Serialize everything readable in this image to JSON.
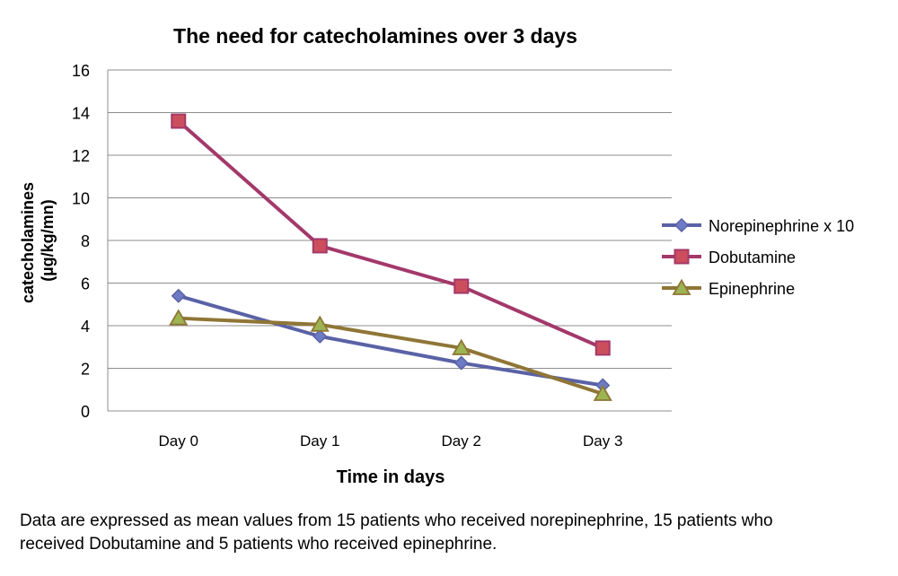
{
  "chart_data": {
    "type": "line",
    "title": "The need for catecholamines over 3 days",
    "xlabel": "Time in days",
    "ylabel_lines": [
      "catecholamines",
      "(µg/kg/mn)"
    ],
    "categories": [
      "Day 0",
      "Day 1",
      "Day 2",
      "Day 3"
    ],
    "ylim": [
      0,
      16
    ],
    "yticks": [
      0,
      2,
      4,
      6,
      8,
      10,
      12,
      14,
      16
    ],
    "grid": true,
    "legend_position": "right",
    "series": [
      {
        "name": "Norepinephrine x 10",
        "values": [
          5.4,
          3.5,
          2.25,
          1.2
        ],
        "color": "#5A62A6",
        "marker": "diamond",
        "marker_fill": "#6C7BC4"
      },
      {
        "name": "Dobutamine",
        "values": [
          13.6,
          7.75,
          5.85,
          2.95
        ],
        "color": "#A3386A",
        "marker": "square",
        "marker_fill": "#CC4E5C"
      },
      {
        "name": "Epinephrine",
        "values": [
          4.35,
          4.05,
          2.95,
          0.8
        ],
        "color": "#8F7636",
        "marker": "triangle",
        "marker_fill": "#9DB452"
      }
    ]
  },
  "caption": {
    "line1": "Data are expressed as mean values from 15 patients who received norepinephrine, 15 patients who",
    "line2": "received Dobutamine and 5 patients who received epinephrine."
  }
}
